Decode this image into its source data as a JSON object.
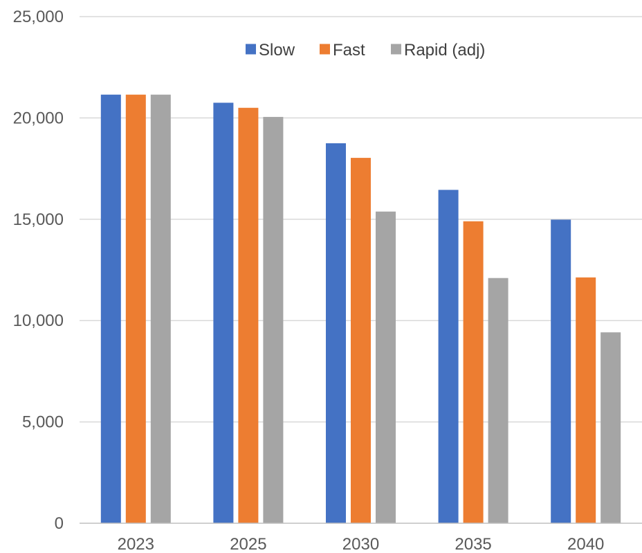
{
  "chart_data": {
    "type": "bar",
    "categories": [
      "2023",
      "2025",
      "2030",
      "2035",
      "2040"
    ],
    "series": [
      {
        "name": "Slow",
        "color": "#4472c4",
        "values": [
          21150,
          20750,
          18750,
          16450,
          14980
        ]
      },
      {
        "name": "Fast",
        "color": "#ed7d31",
        "values": [
          21150,
          20500,
          18030,
          14900,
          12130
        ]
      },
      {
        "name": "Rapid (adj)",
        "color": "#a5a5a5",
        "values": [
          21150,
          20050,
          15380,
          12100,
          9420
        ]
      }
    ],
    "title": "",
    "xlabel": "",
    "ylabel": "",
    "ylim": [
      0,
      25000
    ],
    "yticks": [
      0,
      5000,
      10000,
      15000,
      20000,
      25000
    ],
    "ytick_labels": [
      "0",
      "5,000",
      "10,000",
      "15,000",
      "20,000",
      "25,000"
    ],
    "grid": true,
    "legend_position": "top-center"
  }
}
